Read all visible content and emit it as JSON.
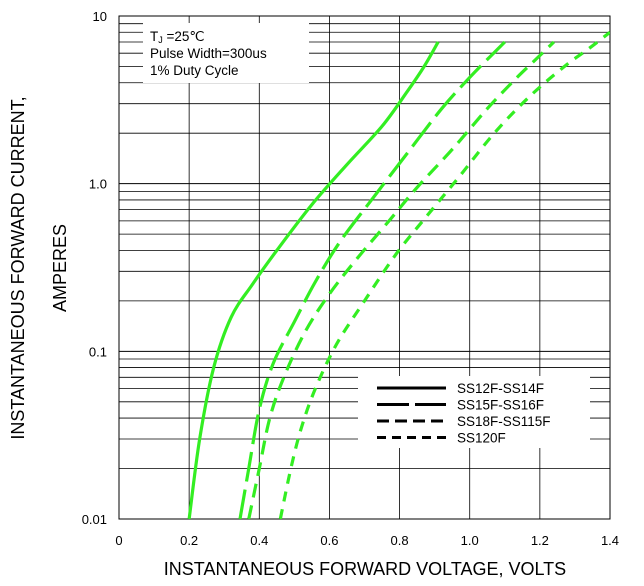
{
  "chart_data": {
    "type": "line",
    "title": "",
    "xlabel": "INSTANTANEOUS FORWARD VOLTAGE, VOLTS",
    "ylabel_line1": "INSTANTANEOUS FORWARD CURRENT,",
    "ylabel_line2": "AMPERES",
    "x_scale": "linear",
    "y_scale": "log",
    "xlim": [
      0,
      1.4
    ],
    "ylim": [
      0.01,
      10
    ],
    "x_ticks": [
      0,
      0.2,
      0.4,
      0.6,
      0.8,
      1.0,
      1.2,
      1.4
    ],
    "x_tick_labels": [
      "0",
      "0.2",
      "0.4",
      "0.6",
      "0.8",
      "1.0",
      "1.2",
      "1.4"
    ],
    "y_ticks": [
      0.01,
      0.1,
      1.0,
      10
    ],
    "y_tick_labels": [
      "0.01",
      "0.1",
      "1.0",
      "10"
    ],
    "grid": true,
    "line_color": "#33ee22",
    "annotation": {
      "line1_prefix": "T",
      "line1_sub": "J",
      "line1_suffix": " =25℃",
      "line2": "Pulse Width=300us",
      "line3": "1% Duty Cycle"
    },
    "legend_position": "bottom-right",
    "series": [
      {
        "name": "SS12F-SS14F",
        "dash": "solid",
        "points": [
          [
            0.2,
            0.01
          ],
          [
            0.23,
            0.03
          ],
          [
            0.27,
            0.08
          ],
          [
            0.32,
            0.16
          ],
          [
            0.38,
            0.25
          ],
          [
            0.45,
            0.4
          ],
          [
            0.55,
            0.75
          ],
          [
            0.65,
            1.3
          ],
          [
            0.75,
            2.2
          ],
          [
            0.82,
            3.5
          ],
          [
            0.87,
            5
          ],
          [
            0.91,
            7
          ]
        ]
      },
      {
        "name": "SS15F-SS16F",
        "dash": "long-dash",
        "points": [
          [
            0.345,
            0.01
          ],
          [
            0.37,
            0.02
          ],
          [
            0.4,
            0.045
          ],
          [
            0.44,
            0.085
          ],
          [
            0.5,
            0.15
          ],
          [
            0.56,
            0.26
          ],
          [
            0.63,
            0.45
          ],
          [
            0.72,
            0.8
          ],
          [
            0.82,
            1.5
          ],
          [
            0.92,
            2.8
          ],
          [
            1.0,
            4.3
          ],
          [
            1.05,
            5.5
          ],
          [
            1.1,
            7
          ]
        ]
      },
      {
        "name": "SS18F-SS115F",
        "dash": "medium-dash",
        "points": [
          [
            0.37,
            0.01
          ],
          [
            0.4,
            0.02
          ],
          [
            0.43,
            0.04
          ],
          [
            0.47,
            0.07
          ],
          [
            0.53,
            0.13
          ],
          [
            0.6,
            0.22
          ],
          [
            0.68,
            0.36
          ],
          [
            0.77,
            0.6
          ],
          [
            0.85,
            0.95
          ],
          [
            0.95,
            1.6
          ],
          [
            1.05,
            2.8
          ],
          [
            1.13,
            4.2
          ],
          [
            1.18,
            5.3
          ],
          [
            1.24,
            7
          ]
        ]
      },
      {
        "name": "SS120F",
        "dash": "short-dash",
        "points": [
          [
            0.46,
            0.01
          ],
          [
            0.49,
            0.02
          ],
          [
            0.52,
            0.035
          ],
          [
            0.56,
            0.06
          ],
          [
            0.62,
            0.11
          ],
          [
            0.7,
            0.2
          ],
          [
            0.79,
            0.38
          ],
          [
            0.88,
            0.65
          ],
          [
            0.97,
            1.1
          ],
          [
            1.07,
            2.0
          ],
          [
            1.17,
            3.3
          ],
          [
            1.27,
            5.0
          ],
          [
            1.34,
            6.4
          ],
          [
            1.4,
            8
          ]
        ]
      }
    ]
  }
}
